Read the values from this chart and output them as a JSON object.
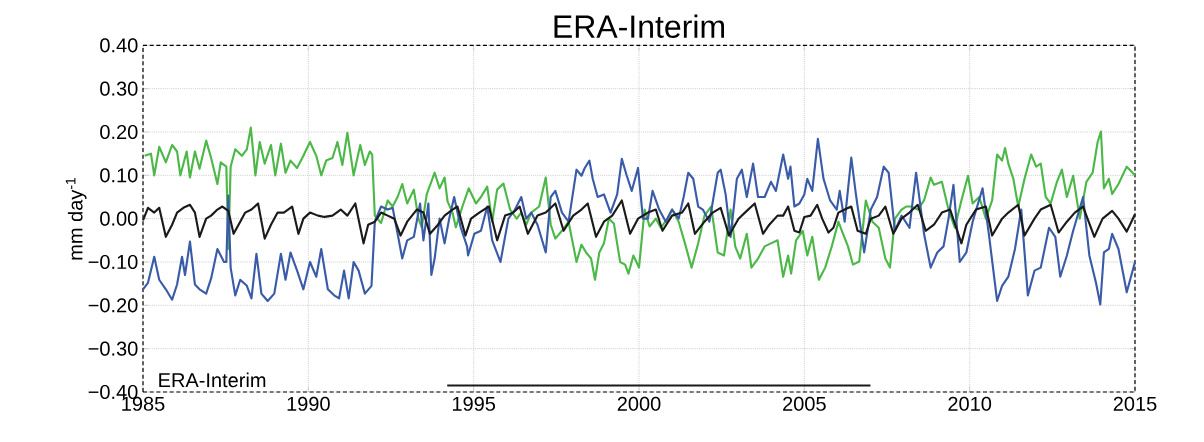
{
  "chart_data": {
    "type": "line",
    "title": "ERA-Interim",
    "ylabel": "mm day$^{-1}$",
    "annotations": [
      "ERA-Interim"
    ],
    "xlim": [
      1985,
      2015
    ],
    "ylim": [
      -0.4,
      0.4
    ],
    "xticks": [
      1985,
      1990,
      1995,
      2000,
      2005,
      2010,
      2015
    ],
    "yticks": [
      {
        "value": -0.4,
        "label": "−0.40"
      },
      {
        "value": -0.3,
        "label": "−0.30"
      },
      {
        "value": -0.2,
        "label": "−0.20"
      },
      {
        "value": -0.1,
        "label": "−0.10"
      },
      {
        "value": 0,
        "label": "0.00"
      },
      {
        "value": 0.1,
        "label": "0.10"
      },
      {
        "value": 0.2,
        "label": "0.20"
      },
      {
        "value": 0.3,
        "label": "0.30"
      },
      {
        "value": 0.4,
        "label": "0.40"
      }
    ],
    "grid": true,
    "line_style": "solid",
    "series": [
      {
        "color": "#4cb848",
        "x": [
          1985.05,
          1985.24,
          1985.34,
          1985.49,
          1985.69,
          1985.88,
          1986.03,
          1986.13,
          1986.32,
          1986.42,
          1986.57,
          1986.71,
          1986.91,
          1987.06,
          1987.25,
          1987.35,
          1987.52,
          1987.58,
          1987.65,
          1987.79,
          1987.99,
          1988.14,
          1988.26,
          1988.4,
          1988.53,
          1988.68,
          1988.87,
          1989.0,
          1989.17,
          1989.31,
          1989.46,
          1989.66,
          1989.85,
          1990.05,
          1990.24,
          1990.39,
          1990.54,
          1990.73,
          1990.88,
          1991.03,
          1991.18,
          1991.37,
          1991.57,
          1991.71,
          1991.86,
          1991.93,
          1992.01,
          1992.2,
          1992.4,
          1992.55,
          1992.7,
          1992.84,
          1992.99,
          1993.19,
          1993.33,
          1993.43,
          1993.58,
          1993.82,
          1993.97,
          1994.12,
          1994.21,
          1994.36,
          1994.46,
          1994.66,
          1994.85,
          1995.07,
          1995.22,
          1995.41,
          1995.56,
          1995.71,
          1995.9,
          1996.1,
          1996.3,
          1996.44,
          1996.59,
          1996.74,
          1996.98,
          1997.18,
          1997.33,
          1997.47,
          1997.67,
          1997.87,
          1998.11,
          1998.26,
          1998.4,
          1998.55,
          1998.67,
          1998.8,
          1998.94,
          1999.09,
          1999.24,
          1999.43,
          1999.58,
          1999.68,
          1999.83,
          2000.0,
          2000.17,
          2000.32,
          2000.51,
          2000.66,
          2000.86,
          2001.0,
          2001.2,
          2001.39,
          2001.59,
          2001.79,
          2001.98,
          2002.18,
          2002.38,
          2002.57,
          2002.77,
          2002.91,
          2003.06,
          2003.26,
          2003.4,
          2003.6,
          2003.8,
          2003.99,
          2004.19,
          2004.36,
          2004.51,
          2004.6,
          2004.75,
          2004.95,
          2005.09,
          2005.24,
          2005.44,
          2005.63,
          2005.83,
          2006.03,
          2006.17,
          2006.32,
          2006.47,
          2006.66,
          2006.86,
          2007.06,
          2007.25,
          2007.45,
          2007.59,
          2007.74,
          2007.94,
          2008.08,
          2008.23,
          2008.43,
          2008.62,
          2008.82,
          2008.92,
          2009.16,
          2009.36,
          2009.55,
          2009.75,
          2009.95,
          2010.09,
          2010.29,
          2010.49,
          2010.68,
          2010.83,
          2010.98,
          2011.07,
          2011.17,
          2011.32,
          2011.47,
          2011.66,
          2011.86,
          2012.01,
          2012.15,
          2012.3,
          2012.45,
          2012.64,
          2012.79,
          2012.94,
          2013.13,
          2013.33,
          2013.53,
          2013.72,
          2013.87,
          2013.97,
          2014.06,
          2014.21,
          2014.31,
          2014.5,
          2014.75,
          2015.0
        ],
        "values": [
          0.145,
          0.15,
          0.1,
          0.166,
          0.13,
          0.17,
          0.155,
          0.1,
          0.155,
          0.095,
          0.155,
          0.115,
          0.18,
          0.14,
          0.08,
          0.13,
          0.12,
          -0.07,
          0.12,
          0.16,
          0.145,
          0.16,
          0.21,
          0.1,
          0.177,
          0.127,
          0.17,
          0.1,
          0.173,
          0.106,
          0.134,
          0.117,
          0.145,
          0.177,
          0.145,
          0.1,
          0.134,
          0.14,
          0.177,
          0.124,
          0.198,
          0.1,
          0.17,
          0.124,
          0.155,
          0.148,
          0.007,
          -0.01,
          0.042,
          0.028,
          0.05,
          0.08,
          0.035,
          0.067,
          0,
          -0.02,
          0.056,
          0.106,
          0.07,
          0.095,
          0.04,
          0.014,
          -0.02,
          0.028,
          0.07,
          0.035,
          0.05,
          0.074,
          -0.007,
          0.067,
          0.081,
          0.021,
          0,
          0.014,
          -0.014,
          0.014,
          0.028,
          0.095,
          -0.014,
          -0.046,
          -0.028,
          -0.007,
          -0.1,
          -0.06,
          -0.078,
          -0.092,
          -0.141,
          -0.078,
          -0.057,
          0,
          -0.011,
          -0.1,
          -0.106,
          -0.127,
          -0.085,
          -0.113,
          0.021,
          -0.018,
          0,
          -0.021,
          0,
          0.021,
          -0.007,
          -0.057,
          -0.113,
          -0.057,
          0.007,
          0.028,
          -0.078,
          -0.085,
          0.021,
          -0.064,
          -0.092,
          -0.035,
          -0.113,
          -0.092,
          -0.064,
          -0.057,
          -0.05,
          -0.134,
          -0.085,
          -0.127,
          -0.05,
          -0.028,
          -0.085,
          -0.042,
          -0.141,
          -0.113,
          -0.064,
          -0.007,
          -0.035,
          -0.064,
          -0.106,
          -0.099,
          0.042,
          -0.007,
          -0.021,
          -0.092,
          -0.113,
          0,
          0.021,
          0.028,
          0.028,
          0.021,
          0.042,
          0.095,
          0.078,
          0.085,
          0.021,
          -0.021,
          0.042,
          0.099,
          0.035,
          0.05,
          0,
          0.042,
          0.148,
          0.134,
          0.163,
          0.127,
          0.092,
          0.028,
          0.092,
          0.148,
          0.12,
          0.127,
          0.05,
          0.035,
          0.085,
          0.113,
          0.05,
          0.099,
          0,
          0.085,
          0.106,
          0.177,
          0.201,
          0.07,
          0.092,
          0.057,
          0.08,
          0.12,
          0.1
        ]
      },
      {
        "color": "#3a5ba8",
        "x": [
          1985.0,
          1985.15,
          1985.34,
          1985.49,
          1985.69,
          1985.88,
          1986.03,
          1986.18,
          1986.27,
          1986.42,
          1986.57,
          1986.71,
          1986.91,
          1987.06,
          1987.25,
          1987.45,
          1987.52,
          1987.58,
          1987.65,
          1987.79,
          1987.94,
          1988.14,
          1988.28,
          1988.43,
          1988.58,
          1988.77,
          1988.97,
          1989.17,
          1989.31,
          1989.46,
          1989.66,
          1989.85,
          1990.05,
          1990.24,
          1990.39,
          1990.59,
          1990.78,
          1990.93,
          1991.08,
          1991.22,
          1991.37,
          1991.52,
          1991.71,
          1991.91,
          1992.01,
          1992.2,
          1992.4,
          1992.55,
          1992.7,
          1992.84,
          1992.99,
          1993.19,
          1993.38,
          1993.48,
          1993.63,
          1993.72,
          1993.82,
          1993.97,
          1994.12,
          1994.26,
          1994.41,
          1994.61,
          1994.8,
          1994.83,
          1995.02,
          1995.22,
          1995.41,
          1995.56,
          1995.81,
          1996.05,
          1996.25,
          1996.44,
          1996.59,
          1996.74,
          1996.93,
          1997.18,
          1997.33,
          1997.47,
          1997.67,
          1997.87,
          1998.11,
          1998.26,
          1998.36,
          1998.5,
          1998.6,
          1998.75,
          1998.94,
          1999.14,
          1999.34,
          1999.48,
          1999.63,
          1999.78,
          1999.97,
          2000.12,
          2000.27,
          2000.41,
          2000.61,
          2000.81,
          2001.0,
          2001.2,
          2001.35,
          2001.49,
          2001.64,
          2001.79,
          2001.93,
          2002.13,
          2002.38,
          2002.47,
          2002.62,
          2002.77,
          2002.96,
          2003.11,
          2003.26,
          2003.45,
          2003.6,
          2003.8,
          2003.99,
          2004.14,
          2004.36,
          2004.51,
          2004.58,
          2004.7,
          2004.85,
          2005.0,
          2005.09,
          2005.24,
          2005.41,
          2005.58,
          2005.78,
          2005.98,
          2006.07,
          2006.22,
          2006.42,
          2006.56,
          2006.81,
          2007.01,
          2007.2,
          2007.4,
          2007.55,
          2007.74,
          2007.94,
          2008.18,
          2008.38,
          2008.62,
          2008.82,
          2009.02,
          2009.21,
          2009.36,
          2009.51,
          2009.7,
          2009.9,
          2010.09,
          2010.39,
          2010.58,
          2010.83,
          2010.98,
          2011.17,
          2011.37,
          2011.56,
          2011.76,
          2011.96,
          2012.15,
          2012.4,
          2012.59,
          2012.74,
          2012.94,
          2013.13,
          2013.43,
          2013.62,
          2013.82,
          2013.95,
          2014.06,
          2014.21,
          2014.31,
          2014.5,
          2014.75,
          2015.0
        ],
        "values": [
          -0.163,
          -0.148,
          -0.088,
          -0.141,
          -0.163,
          -0.187,
          -0.152,
          -0.088,
          -0.13,
          -0.053,
          -0.152,
          -0.163,
          -0.173,
          -0.138,
          -0.07,
          -0.1,
          -0.1,
          0.053,
          -0.113,
          -0.177,
          -0.141,
          -0.155,
          -0.184,
          -0.081,
          -0.173,
          -0.19,
          -0.173,
          -0.081,
          -0.141,
          -0.078,
          -0.12,
          -0.163,
          -0.1,
          -0.134,
          -0.07,
          -0.163,
          -0.177,
          -0.184,
          -0.12,
          -0.184,
          -0.1,
          -0.12,
          -0.173,
          -0.155,
          -0.007,
          0.028,
          0.021,
          0.025,
          -0.035,
          -0.092,
          -0.05,
          -0.042,
          0.035,
          -0.05,
          0.035,
          -0.13,
          -0.092,
          0,
          -0.057,
          0,
          0.05,
          -0.021,
          -0.064,
          -0.085,
          -0.035,
          -0.028,
          0.028,
          -0.05,
          -0.1,
          0,
          0.021,
          0.05,
          0,
          0.014,
          -0.014,
          -0.078,
          0.05,
          0.064,
          0.014,
          -0.007,
          0.113,
          0.099,
          0.117,
          0.134,
          0.092,
          0.05,
          0.056,
          0.014,
          0.056,
          0.138,
          0.099,
          0.064,
          0.117,
          0,
          0,
          0.064,
          0.021,
          -0.007,
          0.021,
          0,
          0.05,
          0.106,
          0.092,
          0.028,
          0.021,
          -0.007,
          0.106,
          0.113,
          0.056,
          -0.042,
          0.092,
          0.113,
          0.05,
          0.127,
          0.05,
          0.05,
          0.085,
          0.064,
          0.148,
          0.092,
          0.12,
          0.028,
          0.035,
          0.056,
          0.092,
          0.064,
          0.184,
          0.092,
          0.042,
          0.021,
          0.064,
          -0.007,
          0.141,
          0.056,
          -0.078,
          0.021,
          0.05,
          0.12,
          0.106,
          -0.028,
          0.007,
          -0.021,
          0.106,
          -0.035,
          -0.113,
          -0.078,
          -0.064,
          0,
          0.078,
          -0.1,
          -0.078,
          -0.007,
          0.07,
          -0.035,
          -0.19,
          -0.155,
          -0.134,
          -0.07,
          0.021,
          -0.177,
          -0.12,
          -0.113,
          -0.021,
          -0.042,
          -0.134,
          -0.085,
          -0.028,
          0.05,
          -0.085,
          -0.148,
          -0.198,
          -0.078,
          -0.07,
          -0.035,
          -0.07,
          -0.17,
          -0.1
        ]
      },
      {
        "color": "#1a1a1a",
        "x": [
          1985.0,
          1985.15,
          1985.34,
          1985.49,
          1985.69,
          1985.88,
          1986.03,
          1986.22,
          1986.42,
          1986.57,
          1986.71,
          1986.91,
          1987.06,
          1987.25,
          1987.4,
          1987.58,
          1987.74,
          1987.94,
          1988.09,
          1988.28,
          1988.48,
          1988.68,
          1988.87,
          1989.07,
          1989.26,
          1989.51,
          1989.7,
          1989.85,
          1990.05,
          1990.29,
          1990.49,
          1990.73,
          1990.98,
          1991.18,
          1991.42,
          1991.67,
          1991.81,
          1992.01,
          1992.2,
          1992.4,
          1992.6,
          1992.79,
          1992.99,
          1993.28,
          1993.48,
          1993.68,
          1993.92,
          1994.12,
          1994.36,
          1994.51,
          1994.75,
          1994.92,
          1995.17,
          1995.46,
          1995.71,
          1995.95,
          1996.2,
          1996.39,
          1996.64,
          1996.93,
          1997.18,
          1997.47,
          1997.72,
          1998.01,
          1998.26,
          1998.45,
          1998.7,
          1998.94,
          1999.19,
          1999.48,
          1999.73,
          1999.97,
          2000.27,
          2000.51,
          2000.71,
          2001.0,
          2001.3,
          2001.49,
          2001.69,
          2001.98,
          2002.23,
          2002.47,
          2002.72,
          2003.01,
          2003.26,
          2003.5,
          2003.75,
          2003.94,
          2004.19,
          2004.36,
          2004.51,
          2004.7,
          2004.85,
          2005.0,
          2005.19,
          2005.39,
          2005.54,
          2005.73,
          2005.88,
          2006.03,
          2006.22,
          2006.42,
          2006.61,
          2006.86,
          2007.01,
          2007.25,
          2007.45,
          2007.69,
          2007.94,
          2008.18,
          2008.43,
          2008.67,
          2008.92,
          2009.16,
          2009.41,
          2009.75,
          2009.9,
          2010.19,
          2010.49,
          2010.68,
          2010.98,
          2011.17,
          2011.47,
          2011.66,
          2011.96,
          2012.15,
          2012.45,
          2012.69,
          2012.94,
          2013.18,
          2013.43,
          2013.77,
          2014.02,
          2014.31,
          2014.5,
          2014.75,
          2015.0
        ],
        "values": [
          -0.004,
          0.025,
          0.014,
          0.025,
          -0.042,
          -0.014,
          0.014,
          0.025,
          0.032,
          0.014,
          -0.042,
          0,
          0.007,
          0.021,
          0.028,
          0.018,
          -0.035,
          -0.007,
          0.014,
          0.021,
          0.035,
          -0.046,
          -0.014,
          0.014,
          0.014,
          0.028,
          -0.035,
          0,
          0.014,
          0.007,
          0.004,
          0.007,
          0.021,
          0.007,
          0.035,
          -0.057,
          -0.014,
          -0.007,
          0.014,
          0.007,
          0,
          -0.039,
          -0.007,
          0.021,
          0.014,
          -0.035,
          -0.014,
          0.007,
          0.021,
          0.028,
          -0.039,
          0,
          0.014,
          0.028,
          -0.05,
          0.007,
          0.014,
          0.028,
          -0.035,
          0.007,
          0.014,
          0.035,
          -0.028,
          0.007,
          0.021,
          0.035,
          -0.042,
          -0.007,
          0.007,
          0.042,
          -0.035,
          0,
          0.014,
          0.021,
          -0.028,
          0.007,
          0.014,
          0.035,
          -0.035,
          -0.007,
          0.014,
          0.025,
          -0.039,
          0,
          0.018,
          0.035,
          -0.035,
          -0.014,
          0.007,
          0.007,
          0.028,
          -0.028,
          -0.032,
          0.004,
          0.007,
          0.032,
          0,
          -0.032,
          -0.021,
          0.014,
          0.021,
          0.028,
          -0.028,
          -0.035,
          0,
          0.007,
          0.028,
          -0.035,
          0,
          0.014,
          0.032,
          -0.028,
          -0.014,
          0.014,
          0.021,
          -0.057,
          -0.014,
          0.021,
          0.028,
          -0.039,
          0,
          0.014,
          0.032,
          -0.039,
          0,
          0.021,
          0.032,
          -0.032,
          -0.007,
          0.014,
          0.028,
          -0.042,
          0,
          0.018,
          0.0,
          -0.03,
          0.01
        ]
      },
      {
        "color": "#1a1a1a",
        "x": [
          1994.2,
          2007.0
        ],
        "values": [
          -0.385,
          -0.385
        ]
      }
    ]
  }
}
